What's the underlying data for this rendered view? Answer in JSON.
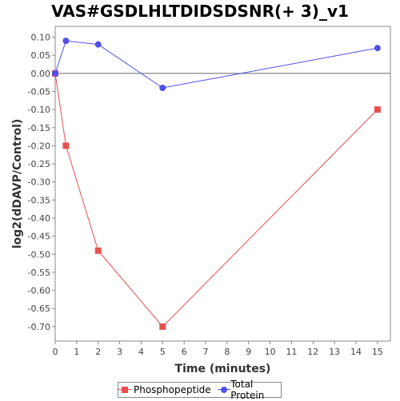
{
  "chart_data": {
    "type": "line",
    "title": "VAS#GSDLHLTDIDSDSNR(+ 3)_v1",
    "xlabel": "Time (minutes)",
    "ylabel": "log2(dDAVP/Control)",
    "xlim": [
      0,
      15.6
    ],
    "ylim": [
      -0.74,
      0.13
    ],
    "x_ticks": [
      0,
      1,
      2,
      3,
      4,
      5,
      6,
      7,
      8,
      9,
      10,
      11,
      12,
      13,
      14,
      15
    ],
    "y_ticks": [
      0.1,
      0.05,
      0.0,
      -0.05,
      -0.1,
      -0.15,
      -0.2,
      -0.25,
      -0.3,
      -0.35,
      -0.4,
      -0.45,
      -0.5,
      -0.55,
      -0.6,
      -0.65,
      -0.7
    ],
    "y_tick_labels": [
      "0.10",
      "0.05",
      "0.00",
      "-0.05",
      "-0.10",
      "-0.15",
      "-0.20",
      "-0.25",
      "-0.30",
      "-0.35",
      "-0.40",
      "-0.45",
      "-0.50",
      "-0.55",
      "-0.60",
      "-0.65",
      "-0.70"
    ],
    "grid": false,
    "zero_line": true,
    "legend_position": "bottom",
    "series": [
      {
        "name": "Phosphopeptide",
        "color": "#e8504f",
        "marker": "square",
        "x": [
          0,
          0.5,
          2,
          5,
          15
        ],
        "y": [
          0.0,
          -0.2,
          -0.49,
          -0.7,
          -0.1
        ]
      },
      {
        "name": "Total Protein",
        "color": "#5050e8",
        "marker": "circle",
        "x": [
          0,
          0.5,
          2,
          5,
          15
        ],
        "y": [
          0.0,
          0.09,
          0.08,
          -0.04,
          0.07
        ]
      }
    ]
  }
}
